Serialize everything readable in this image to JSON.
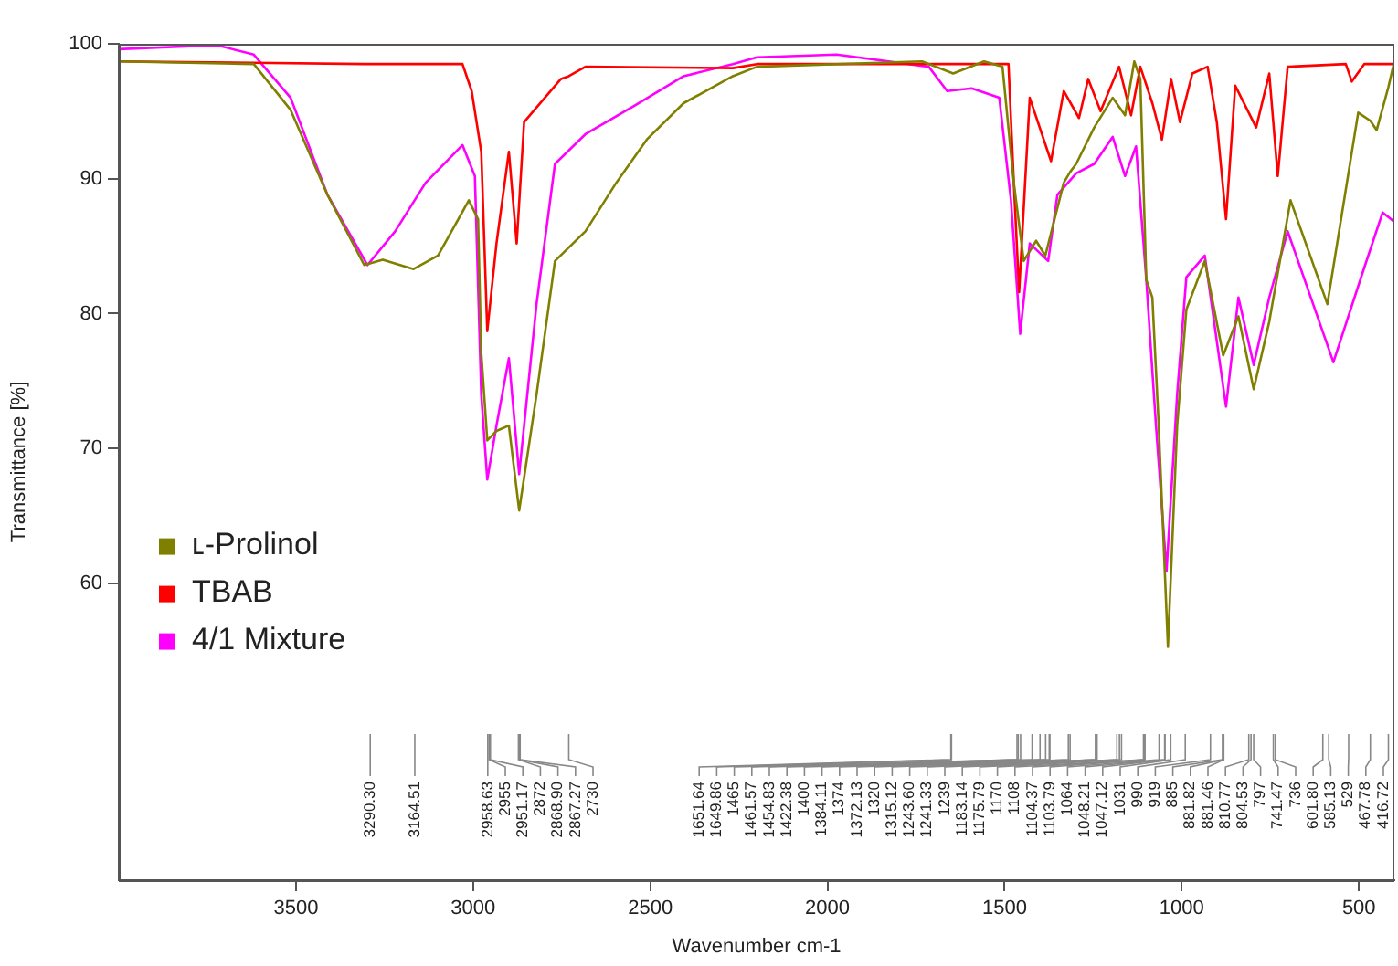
{
  "chart_data": {
    "type": "line",
    "xlabel": "Wavenumber cm-1",
    "ylabel": "Transmittance [%]",
    "xlim": [
      4000,
      400
    ],
    "xticks": [
      3500,
      3000,
      2500,
      2000,
      1500,
      1000,
      500
    ],
    "ylim": [
      38,
      100
    ],
    "yticks": [
      60,
      70,
      80,
      90,
      100
    ],
    "grid": false,
    "legend": "left",
    "marker": "none",
    "line_style": "solid",
    "series": [
      {
        "name": "ʟ-Prolinol",
        "color": "#808000",
        "x": [
          4000,
          3619,
          3515,
          3411,
          3307,
          3255,
          3168,
          3099,
          3012,
          2986,
          2977,
          2960,
          2934,
          2899,
          2870,
          2821,
          2769,
          2683,
          2596,
          2510,
          2406,
          2267,
          2199,
          1733,
          1645,
          1558,
          1506,
          1474,
          1446,
          1411,
          1385,
          1333,
          1315.12,
          1298,
          1247,
          1195,
          1160,
          1134,
          1117,
          1100,
          1083,
          1065,
          1039,
          1013,
          987,
          935,
          883,
          840,
          797,
          753,
          693,
          589,
          502,
          467.78,
          450,
          416.72,
          400
        ],
        "values": [
          98.7,
          98.5,
          95.1,
          88.8,
          83.6,
          84.0,
          83.3,
          84.3,
          88.4,
          87.0,
          77.1,
          70.6,
          71.3,
          71.7,
          65.4,
          74.0,
          83.9,
          86.1,
          89.7,
          92.9,
          95.6,
          97.6,
          98.3,
          98.7,
          97.8,
          98.7,
          98.3,
          89.7,
          83.9,
          85.4,
          84.3,
          89.7,
          90.5,
          91.1,
          93.8,
          96.0,
          94.7,
          98.7,
          97.4,
          82.5,
          81.2,
          71.7,
          55.3,
          71.7,
          80.3,
          83.9,
          76.9,
          79.8,
          74.4,
          79.4,
          88.4,
          80.7,
          94.9,
          94.3,
          93.6,
          96.8,
          98.7
        ]
      },
      {
        "name": "TBAB",
        "color": "#ff0000",
        "x": [
          4000,
          3307,
          3030,
          3004,
          2977,
          2960,
          2934,
          2899,
          2877,
          2856,
          2752,
          2730,
          2683,
          2267,
          2199,
          1489,
          1474,
          1459,
          1429,
          1369,
          1333,
          1290,
          1264,
          1229,
          1177,
          1143,
          1117,
          1083,
          1056,
          1030,
          1005,
          970,
          927,
          901,
          875,
          849,
          790,
          753,
          729,
          701,
          537,
          520,
          485,
          400
        ],
        "values": [
          98.7,
          98.5,
          98.5,
          96.5,
          92.0,
          78.7,
          85.2,
          92.0,
          85.2,
          94.2,
          97.4,
          97.6,
          98.3,
          98.2,
          98.5,
          98.5,
          89.7,
          81.6,
          96.0,
          91.3,
          96.5,
          94.5,
          97.4,
          95.0,
          98.3,
          94.7,
          98.3,
          95.6,
          92.9,
          97.4,
          94.2,
          97.8,
          98.3,
          94.2,
          87.0,
          96.9,
          93.8,
          97.8,
          90.2,
          98.3,
          98.5,
          97.2,
          98.5,
          98.5
        ]
      },
      {
        "name": "4/1 Mixture",
        "color": "#ff00ff",
        "x": [
          4000,
          3723,
          3619,
          3515,
          3411,
          3298,
          3220,
          3134,
          3030,
          2995,
          2977,
          2960,
          2934,
          2899,
          2870,
          2821,
          2769,
          2683,
          2545,
          2406,
          2267,
          2199,
          1974,
          1714,
          1662,
          1593,
          1515,
          1482,
          1456,
          1429,
          1377,
          1351,
          1298,
          1247,
          1195,
          1160,
          1129,
          1100,
          1074,
          1043,
          1013,
          987,
          935,
          875,
          840,
          797,
          753,
          701,
          572,
          485,
          433,
          400
        ],
        "values": [
          99.6,
          99.9,
          99.2,
          96.0,
          88.8,
          83.6,
          86.1,
          89.7,
          92.5,
          90.2,
          74.0,
          67.7,
          71.7,
          76.7,
          68.1,
          80.7,
          91.1,
          93.3,
          95.4,
          97.6,
          98.5,
          99.0,
          99.2,
          98.3,
          96.5,
          96.7,
          96.0,
          88.4,
          78.5,
          85.2,
          83.9,
          88.8,
          90.4,
          91.1,
          93.1,
          90.2,
          92.4,
          82.5,
          72.2,
          60.9,
          74.0,
          82.7,
          84.3,
          73.1,
          81.2,
          76.2,
          81.2,
          86.1,
          76.4,
          83.4,
          87.5,
          86.8
        ]
      }
    ],
    "annotations": [
      {
        "text": "3290.30",
        "x": 3290.3
      },
      {
        "text": "3164.51",
        "x": 3164.51
      },
      {
        "text": "2958.63",
        "x": 2958.63
      },
      {
        "text": "2955",
        "x": 2955
      },
      {
        "text": "2951.17",
        "x": 2951.17
      },
      {
        "text": "2872",
        "x": 2872
      },
      {
        "text": "2868.90",
        "x": 2868.9
      },
      {
        "text": "2867.27",
        "x": 2867.27
      },
      {
        "text": "2730",
        "x": 2730
      },
      {
        "text": "1651.64",
        "x": 1651.64
      },
      {
        "text": "1649.86",
        "x": 1649.86
      },
      {
        "text": "1465",
        "x": 1465
      },
      {
        "text": "1461.57",
        "x": 1461.57
      },
      {
        "text": "1454.83",
        "x": 1454.83
      },
      {
        "text": "1422.38",
        "x": 1422.38
      },
      {
        "text": "1400",
        "x": 1400
      },
      {
        "text": "1384.11",
        "x": 1384.11
      },
      {
        "text": "1374",
        "x": 1374
      },
      {
        "text": "1372.13",
        "x": 1372.13
      },
      {
        "text": "1320",
        "x": 1320
      },
      {
        "text": "1315.12",
        "x": 1315.12
      },
      {
        "text": "1243.60",
        "x": 1243.6
      },
      {
        "text": "1241.33",
        "x": 1241.33
      },
      {
        "text": "1239",
        "x": 1239
      },
      {
        "text": "1183.14",
        "x": 1183.14
      },
      {
        "text": "1175.79",
        "x": 1175.79
      },
      {
        "text": "1170",
        "x": 1170
      },
      {
        "text": "1108",
        "x": 1108
      },
      {
        "text": "1104.37",
        "x": 1104.37
      },
      {
        "text": "1103.79",
        "x": 1103.79
      },
      {
        "text": "1064",
        "x": 1064
      },
      {
        "text": "1048.21",
        "x": 1048.21
      },
      {
        "text": "1047.12",
        "x": 1047.12
      },
      {
        "text": "1031",
        "x": 1031
      },
      {
        "text": "990",
        "x": 990
      },
      {
        "text": "919",
        "x": 919
      },
      {
        "text": "885",
        "x": 885
      },
      {
        "text": "881.82",
        "x": 881.82
      },
      {
        "text": "881.46",
        "x": 881.46
      },
      {
        "text": "810.77",
        "x": 810.77
      },
      {
        "text": "804.53",
        "x": 804.53
      },
      {
        "text": "797",
        "x": 797
      },
      {
        "text": "741.47",
        "x": 741.47
      },
      {
        "text": "736",
        "x": 736
      },
      {
        "text": "601.80",
        "x": 601.8
      },
      {
        "text": "585.13",
        "x": 585.13
      },
      {
        "text": "529",
        "x": 529
      },
      {
        "text": "467.78",
        "x": 467.78
      },
      {
        "text": "416.72",
        "x": 416.72
      }
    ]
  }
}
